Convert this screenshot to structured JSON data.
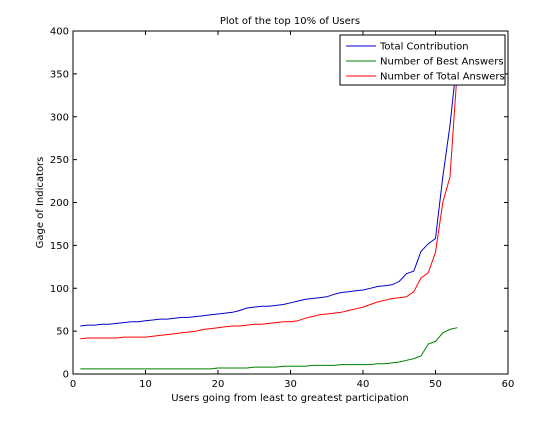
{
  "chart_data": {
    "type": "line",
    "title": "Plot of the top 10% of Users",
    "xlabel": "Users going from least to greatest participation",
    "ylabel": "Gage of Indicators",
    "xlim": [
      0,
      60
    ],
    "ylim": [
      0,
      400
    ],
    "xticks": [
      0,
      10,
      20,
      30,
      40,
      50,
      60
    ],
    "yticks": [
      0,
      50,
      100,
      150,
      200,
      250,
      300,
      350,
      400
    ],
    "grid": false,
    "legend_position": "top-right",
    "x": [
      1,
      2,
      3,
      4,
      5,
      6,
      7,
      8,
      9,
      10,
      11,
      12,
      13,
      14,
      15,
      16,
      17,
      18,
      19,
      20,
      21,
      22,
      23,
      24,
      25,
      26,
      27,
      28,
      29,
      30,
      31,
      32,
      33,
      34,
      35,
      36,
      37,
      38,
      39,
      40,
      41,
      42,
      43,
      44,
      45,
      46,
      47,
      48,
      49,
      50,
      51,
      52,
      53
    ],
    "series": [
      {
        "name": "Total Contribution",
        "color": "#0000cc",
        "values": [
          56,
          57,
          57,
          58,
          58,
          59,
          60,
          61,
          61,
          62,
          63,
          64,
          64,
          65,
          66,
          66,
          67,
          68,
          69,
          70,
          71,
          72,
          74,
          77,
          78,
          79,
          79,
          80,
          81,
          83,
          85,
          87,
          88,
          89,
          90,
          93,
          95,
          96,
          97,
          98,
          100,
          102,
          103,
          104,
          108,
          117,
          120,
          143,
          152,
          158,
          230,
          290,
          370
        ]
      },
      {
        "name": "Number of Best Answers",
        "color": "#008000",
        "values": [
          6,
          6,
          6,
          6,
          6,
          6,
          6,
          6,
          6,
          6,
          6,
          6,
          6,
          6,
          6,
          6,
          6,
          6,
          6,
          7,
          7,
          7,
          7,
          7,
          8,
          8,
          8,
          8,
          9,
          9,
          9,
          9,
          10,
          10,
          10,
          10,
          11,
          11,
          11,
          11,
          11,
          12,
          12,
          13,
          14,
          16,
          18,
          21,
          35,
          38,
          48,
          52,
          54
        ]
      },
      {
        "name": "Number of Total Answers",
        "color": "#ff0000",
        "values": [
          41,
          42,
          42,
          42,
          42,
          42,
          43,
          43,
          43,
          43,
          44,
          45,
          46,
          47,
          48,
          49,
          50,
          52,
          53,
          54,
          55,
          56,
          56,
          57,
          58,
          58,
          59,
          60,
          61,
          61,
          62,
          65,
          67,
          69,
          70,
          71,
          72,
          74,
          76,
          78,
          81,
          84,
          86,
          88,
          89,
          90,
          96,
          112,
          118,
          142,
          200,
          230,
          355
        ]
      }
    ]
  }
}
